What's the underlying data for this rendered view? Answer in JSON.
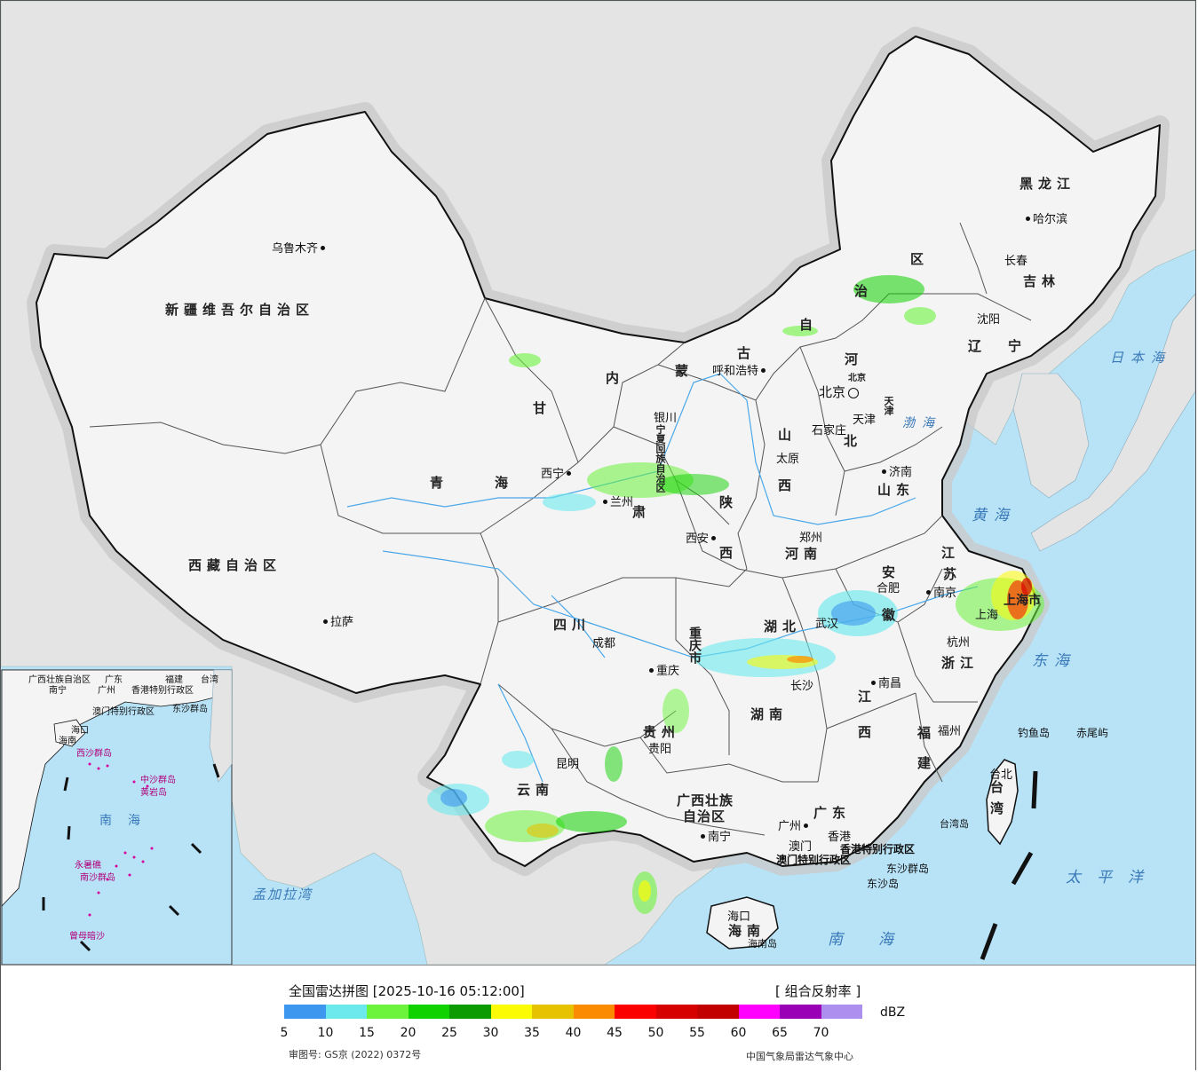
{
  "colors": {
    "sea": "#b8e3f7",
    "land_outside": "#e4e4e4",
    "china_land": "#f4f4f4",
    "border": "#111111",
    "river": "#4aa8e8"
  },
  "provinces": [
    {
      "id": "xinjiang",
      "text": "新疆维吾尔自治区"
    },
    {
      "id": "xizang",
      "text": "西藏自治区"
    },
    {
      "id": "qinghai-a",
      "text": "青"
    },
    {
      "id": "qinghai-b",
      "text": "海"
    },
    {
      "id": "gansu-a",
      "text": "甘"
    },
    {
      "id": "gansu-b",
      "text": "肃"
    },
    {
      "id": "neimenggu-a",
      "text": "内"
    },
    {
      "id": "neimenggu-b",
      "text": "蒙"
    },
    {
      "id": "neimenggu-c",
      "text": "古"
    },
    {
      "id": "neimenggu-d",
      "text": "自"
    },
    {
      "id": "neimenggu-e",
      "text": "治"
    },
    {
      "id": "neimenggu-f",
      "text": "区"
    },
    {
      "id": "heilongjiang",
      "text": "黑龙江"
    },
    {
      "id": "jilin",
      "text": "吉林"
    },
    {
      "id": "liaoning-a",
      "text": "辽"
    },
    {
      "id": "liaoning-b",
      "text": "宁"
    },
    {
      "id": "hebei-a",
      "text": "河"
    },
    {
      "id": "hebei-b",
      "text": "北"
    },
    {
      "id": "shanxi-a",
      "text": "山"
    },
    {
      "id": "shanxi-b",
      "text": "西"
    },
    {
      "id": "shandong",
      "text": "山东"
    },
    {
      "id": "henan",
      "text": "河南"
    },
    {
      "id": "shaanxi-a",
      "text": "陕"
    },
    {
      "id": "shaanxi-b",
      "text": "西"
    },
    {
      "id": "sichuan",
      "text": "四川"
    },
    {
      "id": "chongqing",
      "text": "重庆市"
    },
    {
      "id": "hubei",
      "text": "湖北"
    },
    {
      "id": "hunan",
      "text": "湖南"
    },
    {
      "id": "anhui-a",
      "text": "安"
    },
    {
      "id": "anhui-b",
      "text": "徽"
    },
    {
      "id": "jiangsu-a",
      "text": "江"
    },
    {
      "id": "jiangsu-b",
      "text": "苏"
    },
    {
      "id": "shanghai",
      "text": "上海市"
    },
    {
      "id": "zhejiang",
      "text": "浙江"
    },
    {
      "id": "jiangxi-a",
      "text": "江"
    },
    {
      "id": "jiangxi-b",
      "text": "西"
    },
    {
      "id": "fujian-a",
      "text": "福"
    },
    {
      "id": "fujian-b",
      "text": "建"
    },
    {
      "id": "guizhou",
      "text": "贵州"
    },
    {
      "id": "yunnan",
      "text": "云南"
    },
    {
      "id": "guangxi-a",
      "text": "广西壮族"
    },
    {
      "id": "guangxi-b",
      "text": "自治区"
    },
    {
      "id": "guangdong",
      "text": "广东"
    },
    {
      "id": "hainan",
      "text": "海南"
    },
    {
      "id": "taiwan-a",
      "text": "台"
    },
    {
      "id": "taiwan-b",
      "text": "湾"
    },
    {
      "id": "ningxia",
      "text": "宁夏回族自治区"
    },
    {
      "id": "tianjin",
      "text": "天津"
    },
    {
      "id": "beijing",
      "text": "北京"
    }
  ],
  "cities": [
    {
      "id": "urumqi",
      "text": "乌鲁木齐"
    },
    {
      "id": "lhasa",
      "text": "拉萨"
    },
    {
      "id": "xining",
      "text": "西宁"
    },
    {
      "id": "lanzhou",
      "text": "兰州"
    },
    {
      "id": "yinchuan",
      "text": "银川"
    },
    {
      "id": "hohhot",
      "text": "呼和浩特"
    },
    {
      "id": "harbin",
      "text": "哈尔滨"
    },
    {
      "id": "changchun",
      "text": "长春"
    },
    {
      "id": "shenyang",
      "text": "沈阳"
    },
    {
      "id": "beijing",
      "text": "北京"
    },
    {
      "id": "tianjin",
      "text": "天津"
    },
    {
      "id": "shijiazhuang",
      "text": "石家庄"
    },
    {
      "id": "taiyuan",
      "text": "太原"
    },
    {
      "id": "jinan",
      "text": "济南"
    },
    {
      "id": "zhengzhou",
      "text": "郑州"
    },
    {
      "id": "xian",
      "text": "西安"
    },
    {
      "id": "chengdu",
      "text": "成都"
    },
    {
      "id": "chongqing",
      "text": "重庆"
    },
    {
      "id": "wuhan",
      "text": "武汉"
    },
    {
      "id": "hefei",
      "text": "合肥"
    },
    {
      "id": "nanjing",
      "text": "南京"
    },
    {
      "id": "shanghai",
      "text": "上海"
    },
    {
      "id": "hangzhou",
      "text": "杭州"
    },
    {
      "id": "changsha",
      "text": "长沙"
    },
    {
      "id": "nanchang",
      "text": "南昌"
    },
    {
      "id": "fuzhou",
      "text": "福州"
    },
    {
      "id": "taipei",
      "text": "台北"
    },
    {
      "id": "guiyang",
      "text": "贵阳"
    },
    {
      "id": "kunming",
      "text": "昆明"
    },
    {
      "id": "nanning",
      "text": "南宁"
    },
    {
      "id": "guangzhou",
      "text": "广州"
    },
    {
      "id": "hongkong",
      "text": "香港"
    },
    {
      "id": "macao",
      "text": "澳门"
    },
    {
      "id": "haikou",
      "text": "海口"
    }
  ],
  "seas": [
    {
      "id": "bohai",
      "text": "渤海"
    },
    {
      "id": "huanghai",
      "text": "黄海"
    },
    {
      "id": "donghai",
      "text": "东海"
    },
    {
      "id": "nanhai",
      "text": "南海"
    },
    {
      "id": "riben",
      "text": "日本海"
    },
    {
      "id": "taipingyang",
      "text": "太平洋"
    },
    {
      "id": "mengjiala",
      "text": "孟加拉湾"
    }
  ],
  "other_labels": [
    {
      "id": "diaoyudao",
      "text": "钓鱼岛"
    },
    {
      "id": "chiweiyu",
      "text": "赤尾屿"
    },
    {
      "id": "taiwandao",
      "text": "台湾岛"
    },
    {
      "id": "hainandao",
      "text": "海南岛"
    },
    {
      "id": "dongshaqundao",
      "text": "东沙群岛"
    },
    {
      "id": "dongshadao",
      "text": "东沙岛"
    },
    {
      "id": "hk-sar",
      "text": "香港特别行政区"
    },
    {
      "id": "macao-sar",
      "text": "澳门特别行政区"
    }
  ],
  "inset": {
    "labels": [
      {
        "id": "guangxi",
        "text": "广西壮族自治区"
      },
      {
        "id": "guangdong",
        "text": "广东"
      },
      {
        "id": "fujian",
        "text": "福建"
      },
      {
        "id": "taiwan",
        "text": "台湾"
      },
      {
        "id": "nanning",
        "text": "南宁"
      },
      {
        "id": "guangzhou",
        "text": "广州"
      },
      {
        "id": "hk",
        "text": "香港特别行政区"
      },
      {
        "id": "macao",
        "text": "澳门特别行政区"
      },
      {
        "id": "dongsha",
        "text": "东沙群岛"
      },
      {
        "id": "haikou",
        "text": "海口"
      },
      {
        "id": "hainan",
        "text": "海南"
      },
      {
        "id": "xisha",
        "text": "西沙群岛"
      },
      {
        "id": "zhongsha",
        "text": "中沙群岛"
      },
      {
        "id": "huangyan",
        "text": "黄岩岛"
      },
      {
        "id": "nansha",
        "text": "南沙群岛"
      },
      {
        "id": "nanhai",
        "text": "南海"
      },
      {
        "id": "zengmu",
        "text": "曾母暗沙"
      },
      {
        "id": "yongshu",
        "text": "永暑礁"
      }
    ]
  },
  "legend": {
    "title": "全国雷达拼图 [2025-10-16 05:12:00]",
    "product": "[ 组合反射率 ]",
    "unit": "dBZ",
    "colors": [
      "#3d97ee",
      "#6ce9ec",
      "#6cf33c",
      "#10d200",
      "#0d9b03",
      "#fbfb06",
      "#e6c200",
      "#fb8b00",
      "#fb0000",
      "#d60000",
      "#c20000",
      "#ff00ff",
      "#9a00b5",
      "#ad8ff0"
    ],
    "ticks": [
      "5",
      "10",
      "15",
      "20",
      "25",
      "30",
      "35",
      "40",
      "45",
      "50",
      "55",
      "60",
      "65",
      "70"
    ],
    "approval": "审图号: GS京 (2022) 0372号",
    "issuer": "中国气象局雷达气象中心"
  }
}
